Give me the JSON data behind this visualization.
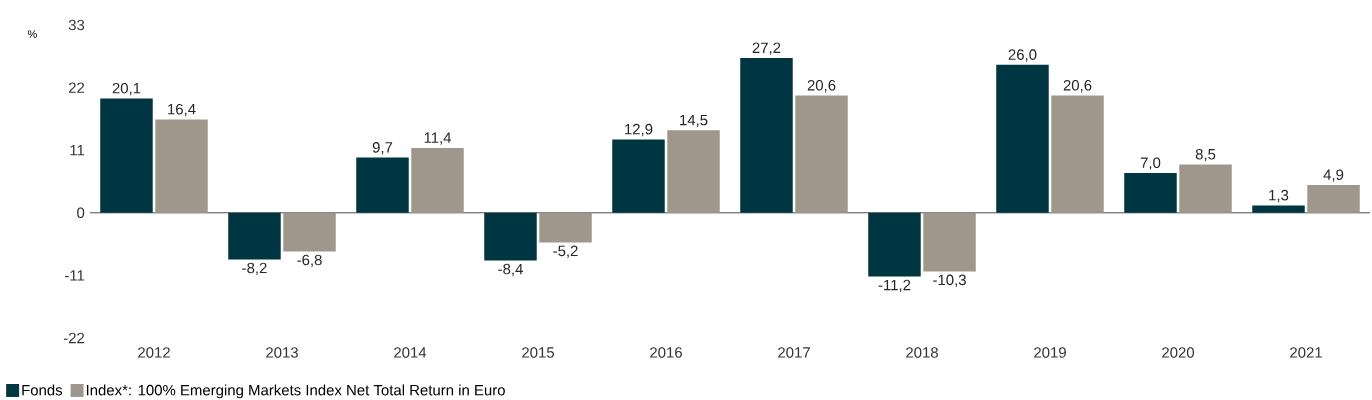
{
  "chart_data": {
    "type": "bar",
    "ylabel": "%",
    "categories": [
      "2012",
      "2013",
      "2014",
      "2015",
      "2016",
      "2017",
      "2018",
      "2019",
      "2020",
      "2021"
    ],
    "series": [
      {
        "name": "Fonds",
        "color": "#003542",
        "values": [
          20.1,
          -8.2,
          9.7,
          -8.4,
          12.9,
          27.2,
          -11.2,
          26.0,
          7.0,
          1.3
        ],
        "value_labels": [
          "20,1",
          "-8,2",
          "9,7",
          "-8,4",
          "12,9",
          "27,2",
          "-11,2",
          "26,0",
          "7,0",
          "1,3"
        ]
      },
      {
        "name": "Index*: 100% Emerging Markets Index Net Total Return in Euro",
        "color": "#a0978c",
        "values": [
          16.4,
          -6.8,
          11.4,
          -5.2,
          14.5,
          20.6,
          -10.3,
          20.6,
          8.5,
          4.9
        ],
        "value_labels": [
          "16,4",
          "-6,8",
          "11,4",
          "-5,2",
          "14,5",
          "20,6",
          "-10,3",
          "20,6",
          "8,5",
          "4,9"
        ]
      }
    ],
    "ylim": [
      -22,
      33
    ],
    "yticks": [
      -22,
      -11,
      0,
      11,
      22,
      33
    ],
    "legend": "bottom"
  }
}
